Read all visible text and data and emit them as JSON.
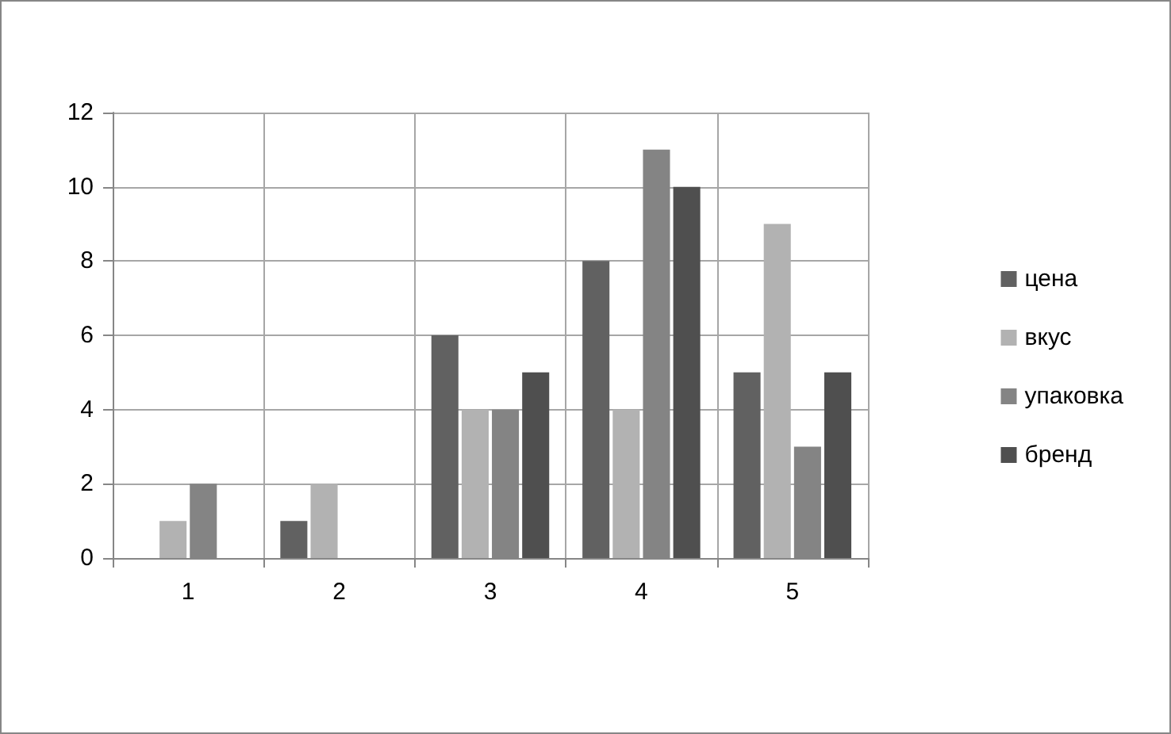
{
  "chart_data": {
    "type": "bar",
    "categories": [
      "1",
      "2",
      "3",
      "4",
      "5"
    ],
    "series": [
      {
        "name": "цена",
        "color": "#616161",
        "values": [
          0,
          1,
          6,
          8,
          5
        ]
      },
      {
        "name": "вкус",
        "color": "#b2b2b2",
        "values": [
          1,
          2,
          4,
          4,
          9
        ]
      },
      {
        "name": "упаковка",
        "color": "#848484",
        "values": [
          2,
          0,
          4,
          11,
          3
        ]
      },
      {
        "name": "бренд",
        "color": "#4f4f4f",
        "values": [
          0,
          null,
          5,
          10,
          5
        ]
      }
    ],
    "ylim": [
      0,
      12
    ],
    "yticks": [
      0,
      2,
      4,
      6,
      8,
      10,
      12
    ],
    "grid": true,
    "legend": "right"
  }
}
